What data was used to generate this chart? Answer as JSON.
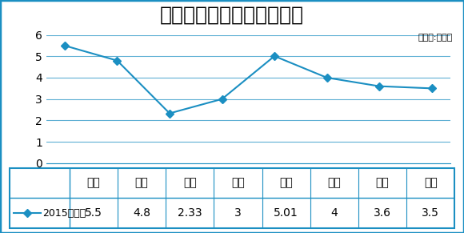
{
  "title": "大众迈腾各地区优惠对比图",
  "unit_label": "（单位:万元）",
  "categories": [
    "北京",
    "上海",
    "长沙",
    "广州",
    "深圳",
    "佛山",
    "东莞",
    "成都"
  ],
  "values": [
    5.5,
    4.8,
    2.33,
    3,
    5.01,
    4,
    3.6,
    3.5
  ],
  "legend_label": "2015款优惠",
  "legend_values": [
    "5.5",
    "4.8",
    "2.33",
    "3",
    "5.01",
    "4",
    "3.6",
    "3.5"
  ],
  "line_color": "#1B8FC2",
  "marker_style": "D",
  "marker_size": 5,
  "ylim": [
    0,
    6
  ],
  "yticks": [
    0,
    1,
    2,
    3,
    4,
    5,
    6
  ],
  "background_color": "#FFFFFF",
  "border_color": "#1B8FC2",
  "grid_color": "#1B8FC2",
  "title_fontsize": 18,
  "axis_fontsize": 10,
  "legend_fontsize": 10
}
